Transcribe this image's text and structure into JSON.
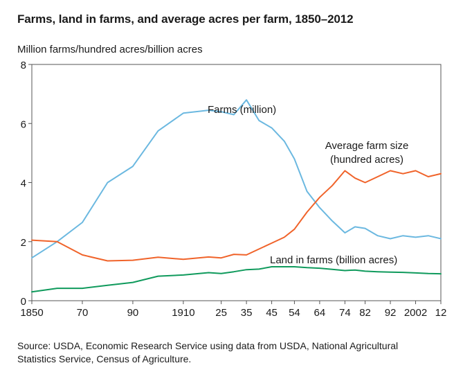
{
  "chart_data": {
    "type": "line",
    "title": "Farms, land in farms, and average acres per farm, 1850–2012",
    "ylabel": "Million farms/hundred acres/billion acres",
    "xlabel": "",
    "ylim": [
      0,
      8
    ],
    "xlim": [
      1850,
      2012
    ],
    "yticks": [
      0,
      2,
      4,
      6,
      8
    ],
    "xticks": [
      {
        "value": 1850,
        "label": "1850"
      },
      {
        "value": 1870,
        "label": "70"
      },
      {
        "value": 1890,
        "label": "90"
      },
      {
        "value": 1910,
        "label": "1910"
      },
      {
        "value": 1925,
        "label": "25"
      },
      {
        "value": 1935,
        "label": "35"
      },
      {
        "value": 1945,
        "label": "45"
      },
      {
        "value": 1954,
        "label": "54"
      },
      {
        "value": 1964,
        "label": "64"
      },
      {
        "value": 1974,
        "label": "74"
      },
      {
        "value": 1982,
        "label": "82"
      },
      {
        "value": 1992,
        "label": "92"
      },
      {
        "value": 2002,
        "label": "2002"
      },
      {
        "value": 2012,
        "label": "12"
      }
    ],
    "grid": false,
    "series": [
      {
        "name": "Farms (million)",
        "label_lines": [
          "Farms (million)"
        ],
        "color": "#6bb8e0",
        "x": [
          1850,
          1860,
          1870,
          1880,
          1890,
          1900,
          1910,
          1920,
          1925,
          1930,
          1935,
          1940,
          1945,
          1950,
          1954,
          1959,
          1964,
          1969,
          1974,
          1978,
          1982,
          1987,
          1992,
          1997,
          2002,
          2007,
          2012
        ],
        "values": [
          1.45,
          2.0,
          2.65,
          4.0,
          4.55,
          5.75,
          6.35,
          6.45,
          6.4,
          6.3,
          6.8,
          6.1,
          5.85,
          5.4,
          4.8,
          3.7,
          3.15,
          2.7,
          2.3,
          2.5,
          2.45,
          2.2,
          2.1,
          2.2,
          2.15,
          2.2,
          2.1
        ]
      },
      {
        "name": "Average farm size (hundred acres)",
        "label_lines": [
          "Average farm size",
          "(hundred acres)"
        ],
        "color": "#f0632a",
        "x": [
          1850,
          1860,
          1870,
          1880,
          1890,
          1900,
          1910,
          1920,
          1925,
          1930,
          1935,
          1940,
          1945,
          1950,
          1954,
          1959,
          1964,
          1969,
          1974,
          1978,
          1982,
          1987,
          1992,
          1997,
          2002,
          2007,
          2012
        ],
        "values": [
          2.05,
          2.0,
          1.55,
          1.35,
          1.37,
          1.47,
          1.4,
          1.48,
          1.45,
          1.57,
          1.55,
          1.75,
          1.95,
          2.15,
          2.42,
          3.0,
          3.5,
          3.9,
          4.4,
          4.15,
          4.0,
          4.2,
          4.4,
          4.3,
          4.4,
          4.2,
          4.3
        ]
      },
      {
        "name": "Land in farms (billion acres)",
        "label_lines": [
          "Land in farms (billion acres)"
        ],
        "color": "#0f9a5c",
        "x": [
          1850,
          1860,
          1870,
          1880,
          1890,
          1900,
          1910,
          1920,
          1925,
          1930,
          1935,
          1940,
          1945,
          1950,
          1954,
          1959,
          1964,
          1969,
          1974,
          1978,
          1982,
          1987,
          1992,
          1997,
          2002,
          2007,
          2012
        ],
        "values": [
          0.3,
          0.42,
          0.42,
          0.52,
          0.62,
          0.83,
          0.87,
          0.95,
          0.92,
          0.98,
          1.05,
          1.07,
          1.15,
          1.15,
          1.15,
          1.12,
          1.1,
          1.06,
          1.02,
          1.04,
          1.0,
          0.98,
          0.97,
          0.96,
          0.94,
          0.92,
          0.91
        ]
      }
    ],
    "source": "Source: USDA, Economic Research Service using data from USDA, National Agricultural Statistics Service, Census of Agriculture."
  }
}
